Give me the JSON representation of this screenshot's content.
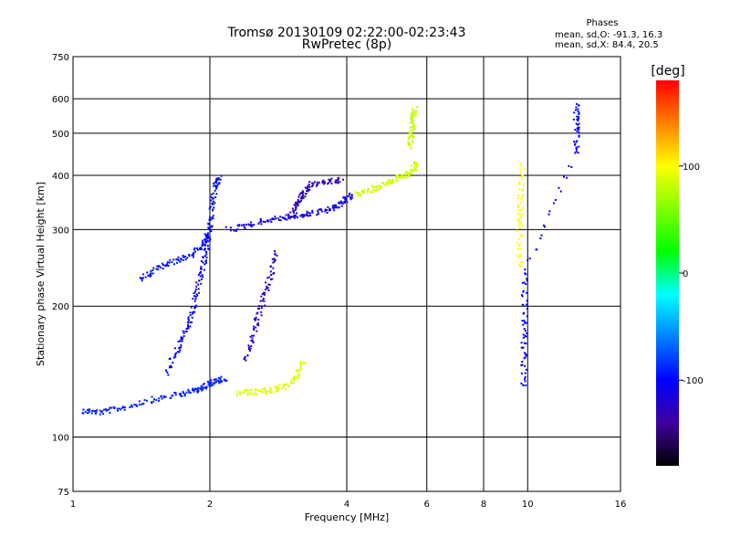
{
  "title_line1": "Tromsø 20130109 02:22:00-02:23:43",
  "title_line2": "RwPretec (8p)",
  "phase_title": "Phases",
  "phase_line1": "mean, sd,O: -91.3, 16.3",
  "phase_line2": "mean, sd,X:  84.4, 20.5",
  "colorbar": {
    "label": "[deg]",
    "range": [
      -180,
      180
    ],
    "ticks": [
      "100",
      "0",
      "-100"
    ],
    "tick_values": [
      100,
      0,
      -100
    ],
    "colors": [
      "#ff0000",
      "#ff8000",
      "#ffff00",
      "#80ff00",
      "#00ff00",
      "#00ffff",
      "#0080ff",
      "#0000ff",
      "#4000a0",
      "#000000"
    ]
  },
  "chart_data": {
    "type": "scatter",
    "xlabel": "Frequency [MHz]",
    "ylabel": "Stationary phase Virtual Height [km]",
    "x_scale": "log",
    "y_scale": "log",
    "xlim": [
      1,
      16
    ],
    "ylim": [
      75,
      750
    ],
    "x_ticks": [
      1,
      2,
      4,
      6,
      8,
      10,
      16
    ],
    "x_tick_labels": [
      "1",
      "2",
      "4",
      "6",
      "8",
      "10",
      "16"
    ],
    "y_ticks": [
      75,
      100,
      200,
      300,
      400,
      500,
      600,
      750
    ],
    "y_tick_labels": [
      "75",
      "100",
      "200",
      "300",
      "400",
      "500",
      "600",
      "750"
    ],
    "grid": true,
    "traces": [
      {
        "phase": -90,
        "points": [
          [
            1.05,
            115
          ],
          [
            1.15,
            114
          ],
          [
            1.3,
            117
          ],
          [
            1.5,
            122
          ],
          [
            1.7,
            125
          ],
          [
            1.85,
            128
          ],
          [
            1.95,
            131
          ],
          [
            2.05,
            134
          ],
          [
            2.15,
            136
          ]
        ]
      },
      {
        "phase": -95,
        "points": [
          [
            1.4,
            230
          ],
          [
            1.55,
            245
          ],
          [
            1.7,
            255
          ],
          [
            1.85,
            265
          ],
          [
            1.95,
            280
          ],
          [
            2.0,
            300
          ],
          [
            2.02,
            340
          ],
          [
            2.05,
            380
          ],
          [
            2.1,
            395
          ]
        ]
      },
      {
        "phase": -100,
        "points": [
          [
            1.6,
            140
          ],
          [
            1.7,
            160
          ],
          [
            1.8,
            180
          ],
          [
            1.85,
            200
          ],
          [
            1.9,
            230
          ],
          [
            1.95,
            260
          ],
          [
            2.0,
            290
          ]
        ]
      },
      {
        "phase": -110,
        "points": [
          [
            2.2,
            300
          ],
          [
            2.5,
            310
          ],
          [
            2.8,
            318
          ],
          [
            3.1,
            322
          ],
          [
            3.4,
            328
          ],
          [
            3.7,
            335
          ],
          [
            3.9,
            345
          ],
          [
            4.1,
            360
          ]
        ]
      },
      {
        "phase": -120,
        "points": [
          [
            2.4,
            150
          ],
          [
            2.5,
            175
          ],
          [
            2.6,
            200
          ],
          [
            2.7,
            230
          ],
          [
            2.8,
            265
          ]
        ]
      },
      {
        "phase": -130,
        "points": [
          [
            3.0,
            320
          ],
          [
            3.1,
            345
          ],
          [
            3.2,
            360
          ],
          [
            3.3,
            380
          ],
          [
            3.6,
            385
          ],
          [
            3.9,
            390
          ]
        ]
      },
      {
        "phase": 90,
        "points": [
          [
            2.3,
            126
          ],
          [
            2.5,
            127
          ],
          [
            2.7,
            128
          ],
          [
            2.9,
            130
          ],
          [
            3.1,
            137
          ],
          [
            3.2,
            150
          ]
        ]
      },
      {
        "phase": 85,
        "points": [
          [
            4.2,
            360
          ],
          [
            4.5,
            370
          ],
          [
            4.8,
            380
          ],
          [
            5.1,
            392
          ],
          [
            5.4,
            400
          ],
          [
            5.6,
            410
          ],
          [
            5.7,
            430
          ]
        ]
      },
      {
        "phase": 80,
        "points": [
          [
            5.5,
            460
          ],
          [
            5.55,
            500
          ],
          [
            5.6,
            540
          ],
          [
            5.65,
            570
          ]
        ]
      },
      {
        "phase": 100,
        "points": [
          [
            9.6,
            250
          ],
          [
            9.6,
            300
          ],
          [
            9.65,
            350
          ],
          [
            9.7,
            420
          ]
        ]
      },
      {
        "phase": -100,
        "points": [
          [
            9.8,
            130
          ],
          [
            9.8,
            160
          ],
          [
            9.85,
            190
          ],
          [
            9.85,
            240
          ],
          [
            12.8,
            450
          ],
          [
            12.8,
            520
          ],
          [
            12.8,
            580
          ]
        ]
      }
    ]
  }
}
